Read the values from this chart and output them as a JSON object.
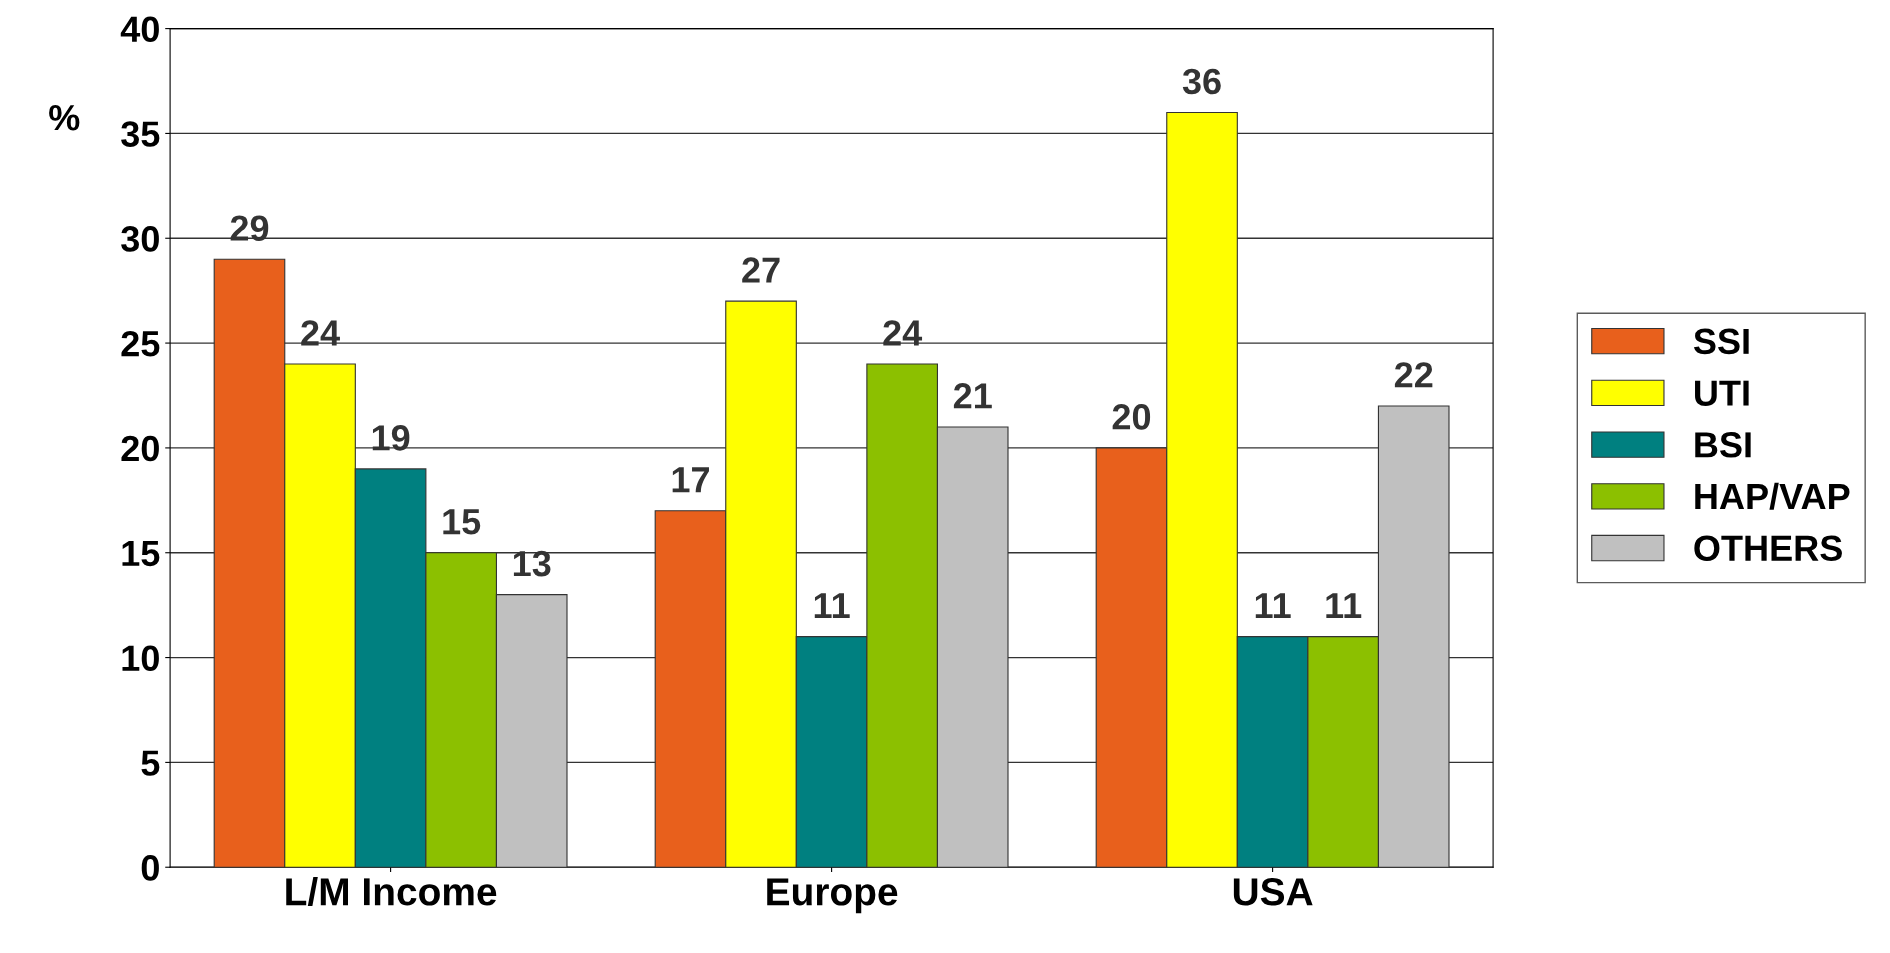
{
  "chart_data": {
    "type": "bar",
    "ylabel": "%",
    "categories": [
      "L/M Income",
      "Europe",
      "USA"
    ],
    "series": [
      {
        "name": "SSI",
        "color": "#e8601c",
        "values": [
          29,
          17,
          20
        ]
      },
      {
        "name": "UTI",
        "color": "#ffff00",
        "values": [
          24,
          27,
          36
        ]
      },
      {
        "name": "BSI",
        "color": "#008080",
        "values": [
          19,
          11,
          11
        ]
      },
      {
        "name": "HAP/VAP",
        "color": "#8cc000",
        "values": [
          15,
          24,
          11
        ]
      },
      {
        "name": "OTHERS",
        "color": "#c0c0c0",
        "values": [
          13,
          21,
          22
        ]
      }
    ],
    "ylim": [
      0,
      40
    ],
    "yticks": [
      0,
      5,
      10,
      15,
      20,
      25,
      30,
      35,
      40
    ],
    "grid": "y",
    "legend": "right",
    "data_labels": true
  }
}
